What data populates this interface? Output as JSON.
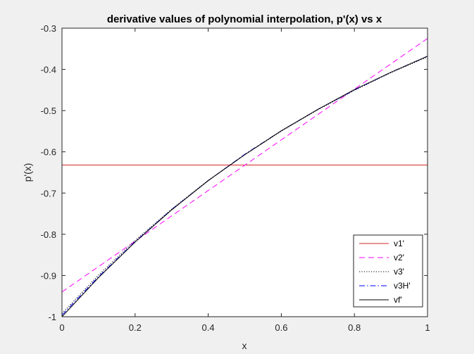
{
  "chart_data": {
    "type": "line",
    "title": "derivative values of polynomial interpolation, p'(x) vs x",
    "xlabel": "x",
    "ylabel": "p'(x)",
    "xlim": [
      0,
      1
    ],
    "ylim": [
      -1,
      -0.3
    ],
    "xticks": [
      0,
      0.2,
      0.4,
      0.6,
      0.8,
      1
    ],
    "xtick_labels": [
      "0",
      "0.2",
      "0.4",
      "0.6",
      "0.8",
      "1"
    ],
    "yticks": [
      -1,
      -0.9,
      -0.8,
      -0.7,
      -0.6,
      -0.5,
      -0.4,
      -0.3
    ],
    "ytick_labels": [
      "-1",
      "-0.9",
      "-0.8",
      "-0.7",
      "-0.6",
      "-0.5",
      "-0.4",
      "-0.3"
    ],
    "grid": false,
    "legend_position": "bottom-right",
    "series": [
      {
        "name": "v1'",
        "color": "#d62728",
        "style": "solid",
        "x": [
          0,
          1
        ],
        "y": [
          -0.632,
          -0.632
        ]
      },
      {
        "name": "v2'",
        "color": "#ff00ff",
        "style": "dashed",
        "x": [
          0,
          1
        ],
        "y": [
          -0.94,
          -0.325
        ]
      },
      {
        "name": "v3'",
        "color": "#000000",
        "style": "dotted",
        "x": [
          0,
          0.1,
          0.2,
          0.3,
          0.4,
          0.5,
          0.6,
          0.7,
          0.8,
          0.9,
          1
        ],
        "y": [
          -0.992,
          -0.899,
          -0.815,
          -0.739,
          -0.669,
          -0.607,
          -0.55,
          -0.498,
          -0.451,
          -0.408,
          -0.37
        ]
      },
      {
        "name": "v3H'",
        "color": "#0000ff",
        "style": "dashdot",
        "x": [
          0,
          0.1,
          0.2,
          0.3,
          0.4,
          0.5,
          0.6,
          0.7,
          0.8,
          0.9,
          1
        ],
        "y": [
          -0.996,
          -0.903,
          -0.818,
          -0.74,
          -0.67,
          -0.606,
          -0.549,
          -0.497,
          -0.45,
          -0.407,
          -0.368
        ]
      },
      {
        "name": "vf'",
        "color": "#000000",
        "style": "solid",
        "x": [
          0,
          0.1,
          0.2,
          0.3,
          0.4,
          0.5,
          0.6,
          0.7,
          0.8,
          0.9,
          1
        ],
        "y": [
          -1.0,
          -0.905,
          -0.819,
          -0.741,
          -0.67,
          -0.607,
          -0.549,
          -0.497,
          -0.449,
          -0.407,
          -0.368
        ]
      }
    ]
  }
}
